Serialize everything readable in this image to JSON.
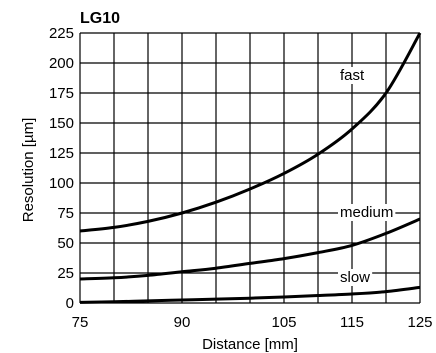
{
  "chart_data": {
    "type": "line",
    "title": "LG10",
    "xlabel": "Distance [mm]",
    "ylabel": "Resolution [µm]",
    "xlim": [
      75,
      125
    ],
    "ylim": [
      0,
      225
    ],
    "xticks": [
      75,
      90,
      105,
      115,
      125
    ],
    "xtick_labels": [
      "75",
      "90",
      "105",
      "115",
      "125"
    ],
    "yticks": [
      0,
      25,
      50,
      75,
      100,
      125,
      150,
      175,
      200,
      225
    ],
    "ytick_labels": [
      "0",
      "25",
      "50",
      "75",
      "100",
      "125",
      "150",
      "175",
      "200",
      "225"
    ],
    "grid": true,
    "series": [
      {
        "name": "fast",
        "x": [
          75,
          80,
          85,
          90,
          95,
          100,
          105,
          110,
          115,
          120,
          125
        ],
        "y": [
          60,
          63,
          68,
          75,
          84,
          95,
          108,
          124,
          145,
          175,
          225
        ]
      },
      {
        "name": "medium",
        "x": [
          75,
          80,
          85,
          90,
          95,
          100,
          105,
          110,
          115,
          120,
          125
        ],
        "y": [
          20,
          21,
          23,
          26,
          29,
          33,
          37,
          42,
          48,
          58,
          70
        ]
      },
      {
        "name": "slow",
        "x": [
          75,
          80,
          85,
          90,
          95,
          100,
          105,
          110,
          115,
          120,
          125
        ],
        "y": [
          0.5,
          1,
          1.8,
          2.5,
          3.2,
          4,
          5,
          6.2,
          7.5,
          9.5,
          13
        ]
      }
    ]
  }
}
